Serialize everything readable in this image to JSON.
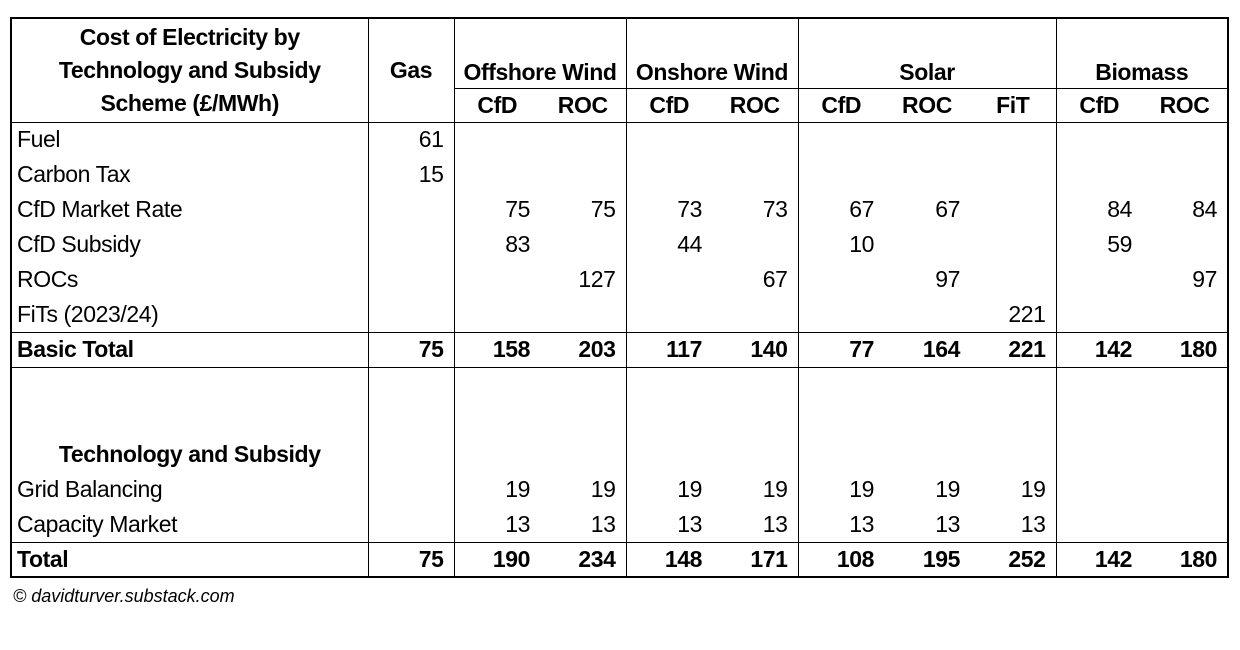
{
  "chart_data": {
    "type": "table",
    "title": "Cost of Electricity by Technology and Subsidy Scheme (£/MWh)",
    "title_lines": [
      "Cost of Electricity by",
      "Technology and Subsidy",
      "Scheme (£/MWh)"
    ],
    "units": "£/MWh",
    "gas_label": "Gas",
    "column_groups": [
      {
        "label": "Offshore Wind",
        "sub": [
          "CfD",
          "ROC"
        ]
      },
      {
        "label": "Onshore Wind",
        "sub": [
          "CfD",
          "ROC"
        ]
      },
      {
        "label": "Solar",
        "sub": [
          "CfD",
          "ROC",
          "FiT"
        ]
      },
      {
        "label": "Biomass",
        "sub": [
          "CfD",
          "ROC"
        ]
      }
    ],
    "value_columns": [
      "Gas",
      "Offshore Wind CfD",
      "Offshore Wind ROC",
      "Onshore Wind CfD",
      "Onshore Wind ROC",
      "Solar CfD",
      "Solar ROC",
      "Solar FiT",
      "Biomass CfD",
      "Biomass ROC"
    ],
    "rows": [
      {
        "label": "Fuel",
        "type": "data",
        "values": [
          61,
          "",
          "",
          "",
          "",
          "",
          "",
          "",
          "",
          ""
        ]
      },
      {
        "label": "Carbon Tax",
        "type": "data",
        "values": [
          15,
          "",
          "",
          "",
          "",
          "",
          "",
          "",
          "",
          ""
        ]
      },
      {
        "label": "CfD Market Rate",
        "type": "data",
        "values": [
          "",
          75,
          75,
          73,
          73,
          67,
          67,
          "",
          84,
          84
        ]
      },
      {
        "label": "CfD Subsidy",
        "type": "data",
        "values": [
          "",
          83,
          "",
          44,
          "",
          10,
          "",
          "",
          59,
          ""
        ]
      },
      {
        "label": "ROCs",
        "type": "data",
        "values": [
          "",
          "",
          127,
          "",
          67,
          "",
          97,
          "",
          "",
          97
        ]
      },
      {
        "label": "FiTs (2023/24)",
        "type": "data",
        "values": [
          "",
          "",
          "",
          "",
          "",
          "",
          "",
          221,
          "",
          ""
        ]
      },
      {
        "label": "Basic Total",
        "type": "basic_total",
        "values": [
          75,
          158,
          203,
          117,
          140,
          77,
          164,
          221,
          142,
          180
        ]
      },
      {
        "label": "",
        "type": "spacer",
        "values": [
          "",
          "",
          "",
          "",
          "",
          "",
          "",
          "",
          "",
          ""
        ]
      },
      {
        "label": "Technology and Subsidy",
        "type": "section",
        "values": [
          "",
          "",
          "",
          "",
          "",
          "",
          "",
          "",
          "",
          ""
        ]
      },
      {
        "label": "Grid Balancing",
        "type": "data",
        "values": [
          "",
          19,
          19,
          19,
          19,
          19,
          19,
          19,
          "",
          ""
        ]
      },
      {
        "label": "Capacity Market",
        "type": "data",
        "values": [
          "",
          13,
          13,
          13,
          13,
          13,
          13,
          13,
          "",
          ""
        ]
      },
      {
        "label": "Total",
        "type": "total",
        "values": [
          75,
          190,
          234,
          148,
          171,
          108,
          195,
          252,
          142,
          180
        ]
      }
    ],
    "layout": {
      "grid": "boxed groups",
      "legend": "none"
    }
  },
  "footer": {
    "copyright": "© davidturver.substack.com"
  },
  "colors": {
    "background": "#ffffff",
    "text": "#000000",
    "border": "#000000"
  }
}
